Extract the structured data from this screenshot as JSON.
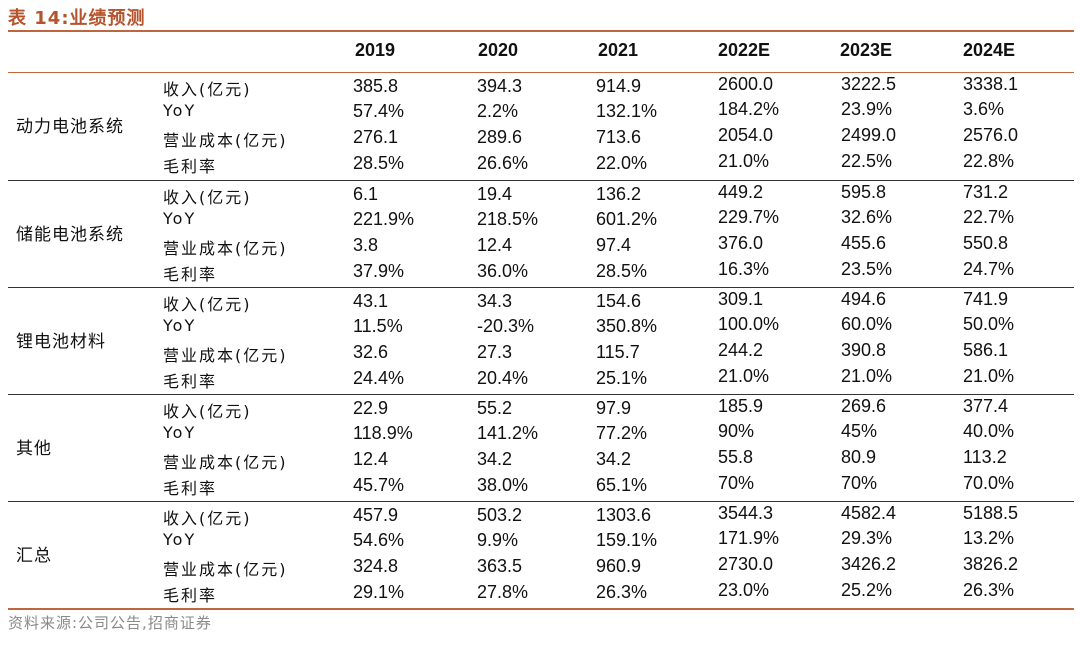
{
  "title": "表 14:业绩预测",
  "columns": [
    "2019",
    "2020",
    "2021",
    "2022E",
    "2023E",
    "2024E"
  ],
  "groups": [
    {
      "name": "动力电池系统",
      "rows": [
        {
          "label": "收入(亿元)",
          "values": [
            "385.8",
            "394.3",
            "914.9",
            "2600.0",
            "3222.5",
            "3338.1"
          ]
        },
        {
          "label": "YoY",
          "values": [
            "57.4%",
            "2.2%",
            "132.1%",
            "184.2%",
            "23.9%",
            "3.6%"
          ]
        },
        {
          "label": "营业成本(亿元)",
          "values": [
            "276.1",
            "289.6",
            "713.6",
            "2054.0",
            "2499.0",
            "2576.0"
          ]
        },
        {
          "label": "毛利率",
          "values": [
            "28.5%",
            "26.6%",
            "22.0%",
            "21.0%",
            "22.5%",
            "22.8%"
          ]
        }
      ]
    },
    {
      "name": "储能电池系统",
      "rows": [
        {
          "label": "收入(亿元)",
          "values": [
            "6.1",
            "19.4",
            "136.2",
            "449.2",
            "595.8",
            "731.2"
          ]
        },
        {
          "label": "YoY",
          "values": [
            "221.9%",
            "218.5%",
            "601.2%",
            "229.7%",
            "32.6%",
            "22.7%"
          ]
        },
        {
          "label": "营业成本(亿元)",
          "values": [
            "3.8",
            "12.4",
            "97.4",
            "376.0",
            "455.6",
            "550.8"
          ]
        },
        {
          "label": "毛利率",
          "values": [
            "37.9%",
            "36.0%",
            "28.5%",
            "16.3%",
            "23.5%",
            "24.7%"
          ]
        }
      ]
    },
    {
      "name": "锂电池材料",
      "rows": [
        {
          "label": "收入(亿元)",
          "values": [
            "43.1",
            "34.3",
            "154.6",
            "309.1",
            "494.6",
            "741.9"
          ]
        },
        {
          "label": "YoY",
          "values": [
            "11.5%",
            "-20.3%",
            "350.8%",
            "100.0%",
            "60.0%",
            "50.0%"
          ]
        },
        {
          "label": "营业成本(亿元)",
          "values": [
            "32.6",
            "27.3",
            "115.7",
            "244.2",
            "390.8",
            "586.1"
          ]
        },
        {
          "label": "毛利率",
          "values": [
            "24.4%",
            "20.4%",
            "25.1%",
            "21.0%",
            "21.0%",
            "21.0%"
          ]
        }
      ]
    },
    {
      "name": "其他",
      "rows": [
        {
          "label": "收入(亿元)",
          "values": [
            "22.9",
            "55.2",
            "97.9",
            "185.9",
            "269.6",
            "377.4"
          ]
        },
        {
          "label": "YoY",
          "values": [
            "118.9%",
            "141.2%",
            "77.2%",
            "90%",
            "45%",
            "40.0%"
          ]
        },
        {
          "label": "营业成本(亿元)",
          "values": [
            "12.4",
            "34.2",
            "34.2",
            "55.8",
            "80.9",
            "113.2"
          ]
        },
        {
          "label": "毛利率",
          "values": [
            "45.7%",
            "38.0%",
            "65.1%",
            "70%",
            "70%",
            "70.0%"
          ]
        }
      ]
    },
    {
      "name": "汇总",
      "rows": [
        {
          "label": "收入(亿元)",
          "values": [
            "457.9",
            "503.2",
            "1303.6",
            "3544.3",
            "4582.4",
            "5188.5"
          ]
        },
        {
          "label": "YoY",
          "values": [
            "54.6%",
            "9.9%",
            "159.1%",
            "171.9%",
            "29.3%",
            "13.2%"
          ]
        },
        {
          "label": "营业成本(亿元)",
          "values": [
            "324.8",
            "363.5",
            "960.9",
            "2730.0",
            "3426.2",
            "3826.2"
          ]
        },
        {
          "label": "毛利率",
          "values": [
            "29.1%",
            "27.8%",
            "26.3%",
            "23.0%",
            "25.2%",
            "26.3%"
          ]
        }
      ]
    }
  ],
  "source": "资料来源:公司公告,招商证券"
}
